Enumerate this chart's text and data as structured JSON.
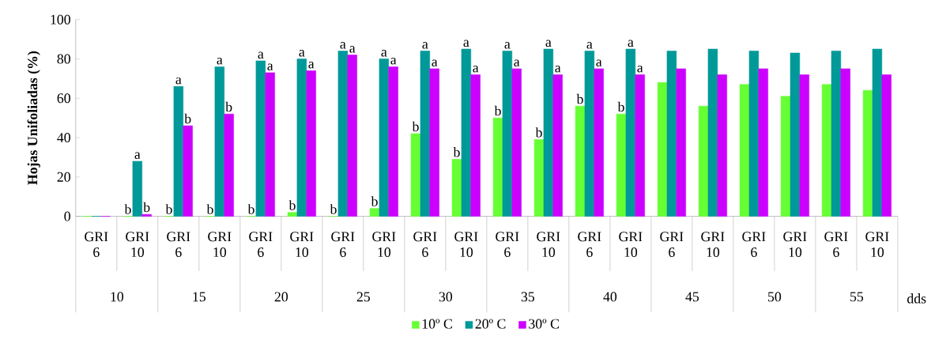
{
  "chart_data": {
    "type": "bar",
    "ylabel": "Hojas Unifoliadas  (%)",
    "xlabel": "dds",
    "categories": [
      "GRI 6",
      "GRI 10",
      "GRI 6",
      "GRI 10",
      "GRI 6",
      "GRI 10",
      "GRI 6",
      "GRI 10",
      "GRI 6",
      "GRI 10",
      "GRI 6",
      "GRI 10",
      "GRI 6",
      "GRI 10",
      "GRI 6",
      "GRI 10",
      "GRI 6",
      "GRI 10",
      "GRI 6",
      "GRI 10"
    ],
    "annotations": [
      "10",
      "15",
      "20",
      "25",
      "30",
      "35",
      "40",
      "45",
      "50",
      "55"
    ],
    "series": [
      {
        "name": "10º C",
        "color": "#66ff33",
        "values": [
          0,
          0,
          0,
          0,
          0,
          2,
          0,
          4,
          42,
          29,
          50,
          39,
          56,
          52,
          68,
          56,
          67,
          61,
          67,
          64
        ],
        "value_labels": [
          null,
          "b",
          "b",
          "b",
          "b",
          "b",
          "b",
          "b",
          "b",
          "b",
          "b",
          "b",
          "b",
          "b",
          null,
          null,
          null,
          null,
          null,
          null
        ]
      },
      {
        "name": "20º C",
        "color": "#009999",
        "values": [
          0,
          28,
          66,
          76,
          79,
          80,
          84,
          80,
          84,
          85,
          84,
          85,
          84,
          85,
          84,
          85,
          84,
          83,
          84,
          85
        ],
        "value_labels": [
          null,
          "a",
          "a",
          "a",
          "a",
          "a",
          "a",
          "a",
          "a",
          "a",
          "a",
          "a",
          "a",
          "a",
          null,
          null,
          null,
          null,
          null,
          null
        ]
      },
      {
        "name": "30º C",
        "color": "#cc00ff",
        "values": [
          0,
          1,
          46,
          52,
          73,
          74,
          82,
          76,
          75,
          72,
          75,
          72,
          75,
          72,
          75,
          72,
          75,
          72,
          75,
          72
        ],
        "value_labels": [
          null,
          "b",
          "b",
          "b",
          "a",
          "a",
          "a",
          "a",
          "a",
          "a",
          "a",
          "a",
          "a",
          "a",
          null,
          null,
          null,
          null,
          null,
          null
        ]
      }
    ],
    "ylim": [
      0,
      100
    ],
    "yticks": [
      0,
      20,
      40,
      60,
      80,
      100
    ],
    "legend": "bottom"
  }
}
